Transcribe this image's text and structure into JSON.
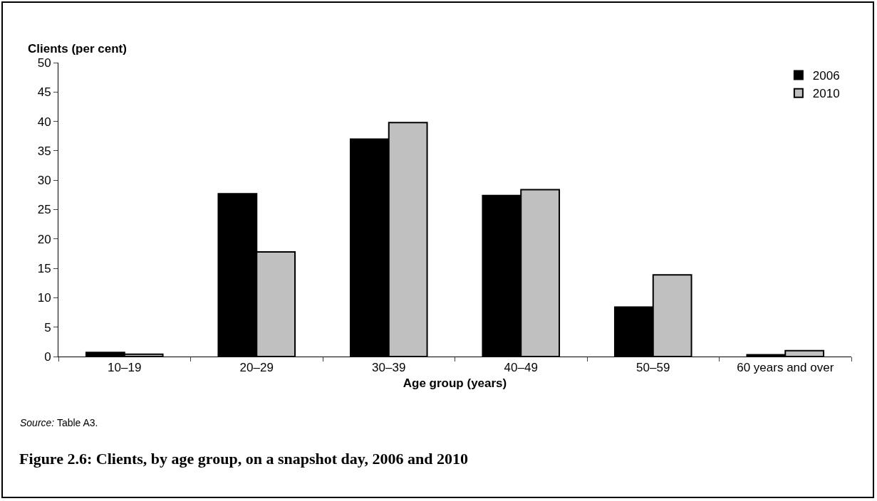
{
  "chart_data": {
    "type": "bar",
    "title": "Figure 2.6: Clients, by age group, on a snapshot day, 2006 and 2010",
    "xlabel": "Age group (years)",
    "ylabel": "Clients (per cent)",
    "categories": [
      "10–19",
      "20–29",
      "30–39",
      "40–49",
      "50–59",
      "60 years and over"
    ],
    "series": [
      {
        "name": "2006",
        "color": "#000000",
        "values": [
          0.7,
          27.7,
          37.0,
          27.4,
          8.4,
          0.3
        ]
      },
      {
        "name": "2010",
        "color": "#c0c0c0",
        "values": [
          0.4,
          17.8,
          39.8,
          28.4,
          13.9,
          1.0
        ]
      }
    ],
    "ylim": [
      0,
      50
    ],
    "yticks": [
      0,
      5,
      10,
      15,
      20,
      25,
      30,
      35,
      40,
      45,
      50
    ],
    "grid": false,
    "legend": "top right",
    "annotations": [
      "Source: Table A3."
    ]
  }
}
